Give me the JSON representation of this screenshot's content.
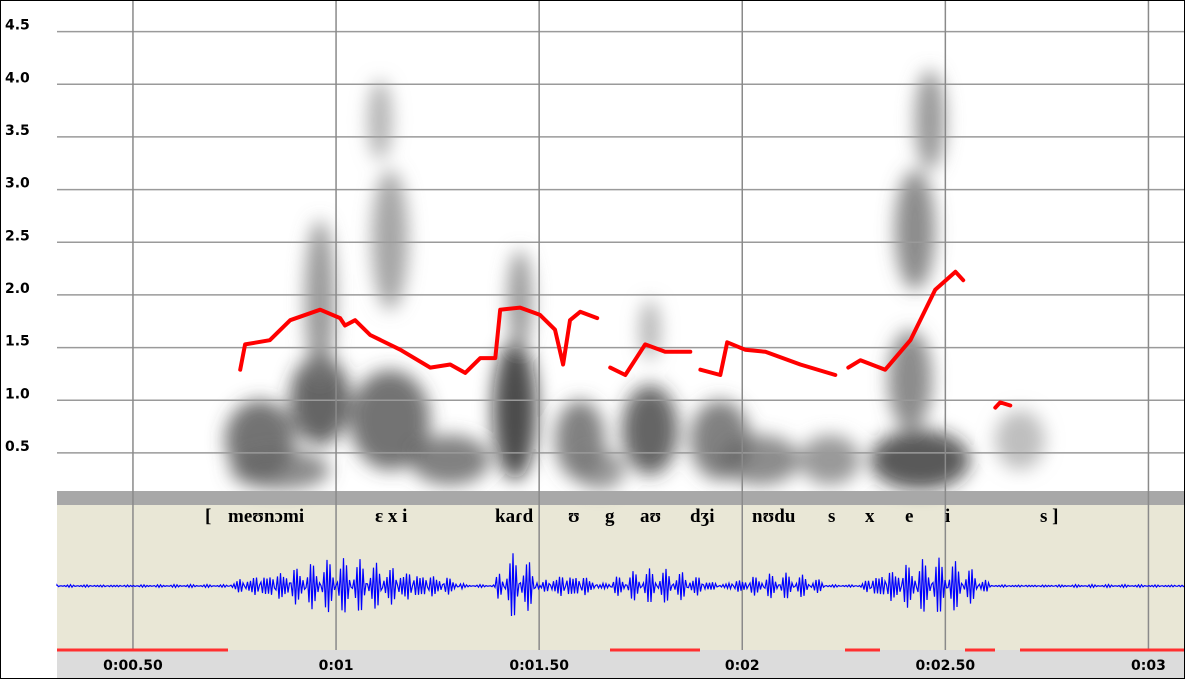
{
  "chart_data": {
    "type": "spectrogram",
    "ylim": [
      0,
      4.8
    ],
    "yticks": [
      0.5,
      {
        "value": 1,
        "label": "1.0"
      },
      1.5,
      {
        "value": 2,
        "label": "2.0"
      },
      2.5,
      {
        "value": 3,
        "label": "3.0"
      },
      3.5,
      {
        "value": 4,
        "label": "4.0"
      },
      4.5
    ],
    "xlim": [
      0.313,
      3.09
    ],
    "xticks": [
      {
        "value": 0.5,
        "label": "0:00.50"
      },
      {
        "value": 1,
        "label": "0:01"
      },
      {
        "value": 1.5,
        "label": "0:01.50"
      },
      {
        "value": 2,
        "label": "0:02"
      },
      {
        "value": 2.5,
        "label": "0:02.50"
      },
      {
        "value": 3,
        "label": "0:03"
      }
    ],
    "grid": true,
    "transcription": [
      "[",
      "meʊnɔmi",
      "ɛ x i",
      "kaɾd",
      "ʊ",
      "g",
      "aʊ",
      "dʒi",
      "nʊdu",
      "s",
      "x",
      "e",
      "i",
      "s ]"
    ],
    "x": [
      0.764,
      0.776,
      0.837,
      0.887,
      0.961,
      1.01,
      1.022,
      1.047,
      1.084,
      1.158,
      1.232,
      1.281,
      1.318,
      1.355,
      1.392,
      1.404,
      1.453,
      1.502,
      1.539,
      1.559,
      1.576,
      1.601,
      1.643,
      1.66,
      1.675,
      1.712,
      1.761,
      1.81,
      1.872,
      1.885,
      1.897,
      1.946,
      1.963,
      2.007,
      2.057,
      2.143,
      2.229,
      2.245,
      2.261,
      2.291,
      2.352,
      2.414,
      2.475,
      2.525,
      2.544,
      2.58,
      2.623,
      2.635,
      2.66
    ],
    "series": [
      {
        "color": "#ff0000",
        "values": [
          1.29,
          1.53,
          1.57,
          1.76,
          1.86,
          1.78,
          1.71,
          1.76,
          1.62,
          1.48,
          1.31,
          1.34,
          1.26,
          1.4,
          1.4,
          1.86,
          1.88,
          1.81,
          1.67,
          1.34,
          1.76,
          1.84,
          1.78,
          null,
          1.31,
          1.24,
          1.53,
          1.46,
          1.46,
          null,
          1.29,
          1.24,
          1.55,
          1.48,
          1.46,
          1.34,
          1.24,
          null,
          1.31,
          1.38,
          1.29,
          1.57,
          2.05,
          2.22,
          2.14,
          null,
          0.93,
          0.98,
          0.95
        ]
      }
    ]
  }
}
